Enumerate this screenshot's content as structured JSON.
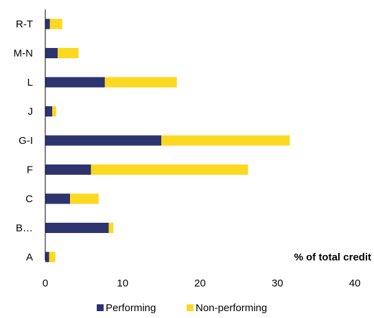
{
  "chart_data": {
    "type": "bar",
    "orientation": "horizontal",
    "stacked": true,
    "categories": [
      "R-T",
      "M-N",
      "L",
      "J",
      "G-I",
      "F",
      "C",
      "B…",
      "A"
    ],
    "series": [
      {
        "name": "Performing",
        "color": "#2E3470",
        "values": [
          0.6,
          1.6,
          7.7,
          0.9,
          15.0,
          5.9,
          3.2,
          8.2,
          0.5
        ]
      },
      {
        "name": "Non-performing",
        "color": "#FDD820",
        "values": [
          1.6,
          2.7,
          9.3,
          0.5,
          16.6,
          20.3,
          3.7,
          0.6,
          0.8
        ]
      }
    ],
    "xlabel": "% of total credit",
    "xlim": [
      0,
      40
    ],
    "xticks": [
      "0",
      "10",
      "20",
      "30",
      "40"
    ],
    "grid": false,
    "legend": "bottom"
  }
}
